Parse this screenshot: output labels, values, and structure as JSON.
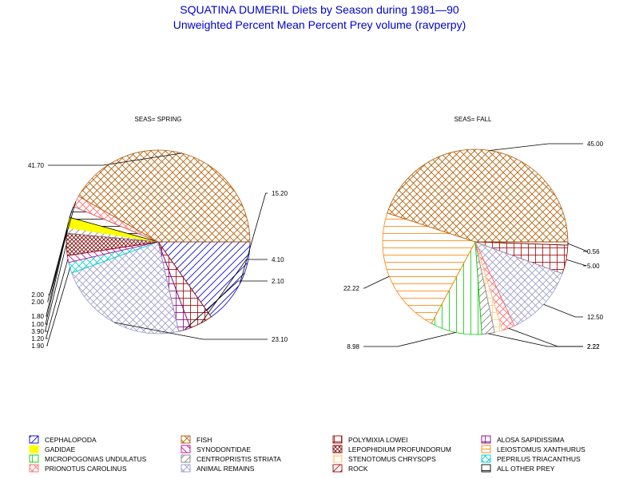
{
  "title": "SQUATINA DUMERIL Diets by Season during 1981—90",
  "subtitle": "Unweighted Percent Mean Percent Prey  volume (ravperpy)",
  "chart_data": [
    {
      "type": "pie",
      "title": "SEAS= SPRING",
      "slices": [
        {
          "category": "CEPHALOPODA",
          "value": 15.2,
          "label": "15.20"
        },
        {
          "category": "POLYMIXIA LOWEI",
          "value": 4.1,
          "label": "4.10"
        },
        {
          "category": "ALOSA SAPIDISSIMA",
          "value": 2.1,
          "label": "2.10"
        },
        {
          "category": "ANIMAL REMAINS",
          "value": 23.1,
          "label": "23.10"
        },
        {
          "category": "PEPRILUS TRIACANTHUS",
          "value": 1.9,
          "label": "1.90"
        },
        {
          "category": "SYNODONTIDAE",
          "value": 1.2,
          "label": "1.20"
        },
        {
          "category": "LEPOPHIDIUM PROFUNDORUM",
          "value": 3.9,
          "label": "3.90"
        },
        {
          "category": "CENTROPRISTIS STRIATA",
          "value": 1.0,
          "label": "1.00"
        },
        {
          "category": "GADIDAE",
          "value": 1.8,
          "label": "1.80"
        },
        {
          "category": "ALL OTHER PREY",
          "value": 2.0,
          "label": "2.00"
        },
        {
          "category": "PRIONOTUS CAROLINUS",
          "value": 2.0,
          "label": "2.00"
        },
        {
          "category": "FISH",
          "value": 41.7,
          "label": "41.70"
        }
      ]
    },
    {
      "type": "pie",
      "title": "SEAS= FALL",
      "slices": [
        {
          "category": "ALL OTHER PREY",
          "value": 0.56,
          "label": "0.56"
        },
        {
          "category": "POLYMIXIA LOWEI",
          "value": 5.0,
          "label": "5.00"
        },
        {
          "category": "ANIMAL REMAINS",
          "value": 12.5,
          "label": "12.50"
        },
        {
          "category": "PRIONOTUS CAROLINUS",
          "value": 2.22,
          "label": "2.22"
        },
        {
          "category": "STENOTOMUS CHRYSOPS",
          "value": 1.39,
          "label": ""
        },
        {
          "category": "CENTROPRISTIS STRIATA",
          "value": 2.22,
          "label": "2.22"
        },
        {
          "category": "MICROPOGONIAS UNDULATUS",
          "value": 8.98,
          "label": "8.98"
        },
        {
          "category": "LEIOSTOMUS XANTHURUS",
          "value": 22.22,
          "label": "22.22"
        },
        {
          "category": "FISH",
          "value": 45.0,
          "label": "45.00"
        }
      ]
    }
  ],
  "legend": [
    {
      "name": "CEPHALOPODA",
      "color": "#0000cc",
      "pattern": "diag-up"
    },
    {
      "name": "FISH",
      "color": "#b35900",
      "pattern": "cross-diag"
    },
    {
      "name": "POLYMIXIA LOWEI",
      "color": "#990000",
      "pattern": "box"
    },
    {
      "name": "ALOSA SAPIDISSIMA",
      "color": "#800080",
      "pattern": "box"
    },
    {
      "name": "GADIDAE",
      "color": "#ffff00",
      "pattern": "solid"
    },
    {
      "name": "SYNODONTIDAE",
      "color": "#cc0099",
      "pattern": "diag-down"
    },
    {
      "name": "LEPOPHIDIUM PROFUNDORUM",
      "color": "#800000",
      "pattern": "cross-dense"
    },
    {
      "name": "LEIOSTOMUS XANTHURUS",
      "color": "#ff8000",
      "pattern": "horiz"
    },
    {
      "name": "MICROPOGONIAS UNDULATUS",
      "color": "#00cc00",
      "pattern": "vert"
    },
    {
      "name": "CENTROPRISTIS STRIATA",
      "color": "#808080",
      "pattern": "diag-up"
    },
    {
      "name": "STENOTOMUS CHRYSOPS",
      "color": "#ffcc80",
      "pattern": "grid"
    },
    {
      "name": "PEPRILUS TRIACANTHUS",
      "color": "#00cccc",
      "pattern": "cross-diag"
    },
    {
      "name": "PRIONOTUS CAROLINUS",
      "color": "#ff6666",
      "pattern": "cross-diag"
    },
    {
      "name": "ANIMAL REMAINS",
      "color": "#9999cc",
      "pattern": "cross-diag"
    },
    {
      "name": "ROCK",
      "color": "#990000",
      "pattern": "diag-up"
    },
    {
      "name": "ALL OTHER PREY",
      "color": "#000000",
      "pattern": "horiz"
    }
  ]
}
